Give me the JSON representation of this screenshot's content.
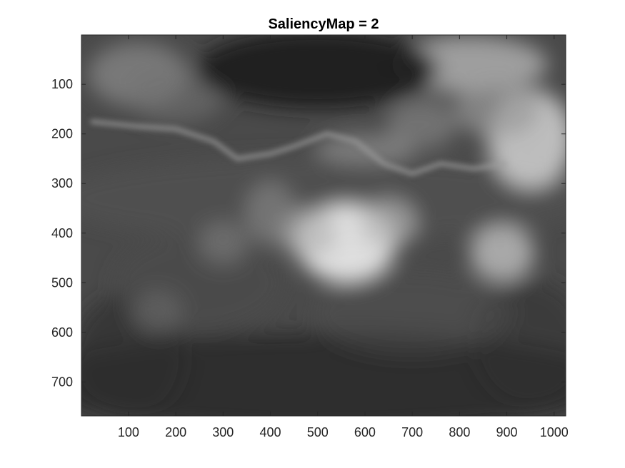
{
  "chart_data": {
    "type": "heatmap",
    "title": "SaliencyMap = 2",
    "xlabel": "",
    "ylabel": "",
    "colormap": "gray",
    "xlim": [
      0.5,
      1024.5
    ],
    "ylim": [
      0.5,
      768.5
    ],
    "y_direction": "reverse",
    "x_ticks": [
      100,
      200,
      300,
      400,
      500,
      600,
      700,
      800,
      900,
      1000
    ],
    "y_ticks": [
      100,
      200,
      300,
      400,
      500,
      600,
      700
    ],
    "grid": false,
    "description_regions": [
      {
        "x": 512,
        "y": 80,
        "intensity": 0.12
      },
      {
        "x": 560,
        "y": 420,
        "intensity": 0.9
      },
      {
        "x": 930,
        "y": 200,
        "intensity": 0.8
      },
      {
        "x": 600,
        "y": 230,
        "intensity": 0.7
      },
      {
        "x": 180,
        "y": 190,
        "intensity": 0.65
      },
      {
        "x": 890,
        "y": 440,
        "intensity": 0.7
      },
      {
        "x": 300,
        "y": 420,
        "intensity": 0.5
      },
      {
        "x": 800,
        "y": 60,
        "intensity": 0.6
      },
      {
        "x": 100,
        "y": 700,
        "intensity": 0.15
      },
      {
        "x": 950,
        "y": 700,
        "intensity": 0.2
      }
    ]
  },
  "colors": {
    "axis": "#262626",
    "background": "#ffffff"
  }
}
